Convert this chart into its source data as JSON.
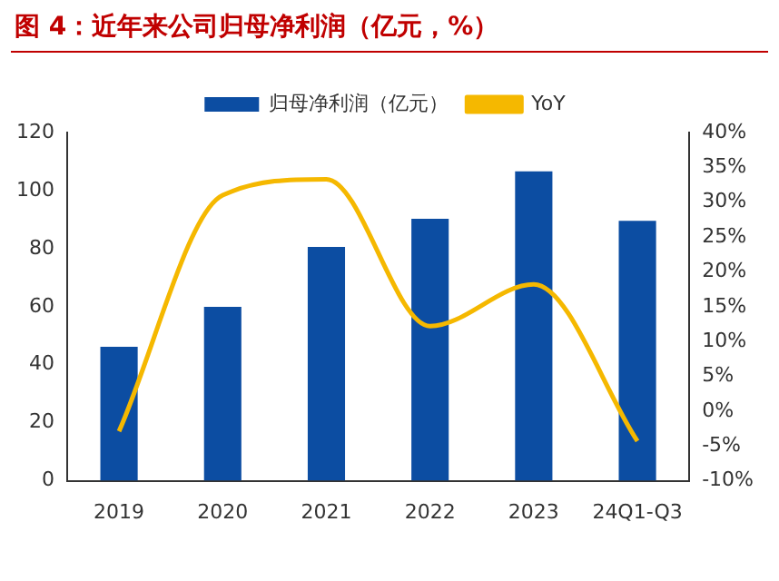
{
  "chart_data": {
    "type": "bar",
    "title": "图 4：近年来公司归母净利润（亿元，%）",
    "categories": [
      "2019",
      "2020",
      "2021",
      "2022",
      "2023",
      "24Q1-Q3"
    ],
    "series": [
      {
        "name": "归母净利润（亿元）",
        "color": "#0c4da2",
        "values": [
          46.2,
          59.9,
          80.6,
          90.3,
          106.6,
          89.6
        ]
      },
      {
        "name": "YoY",
        "type": "line",
        "axis": "y2",
        "color": "#f5b800",
        "values": [
          -2.9,
          31,
          33.3,
          12.2,
          18.2,
          -4.3
        ]
      }
    ],
    "ylim": [
      0,
      120
    ],
    "yticks": [
      0,
      20,
      40,
      60,
      80,
      100,
      120
    ],
    "y2lim": [
      -10,
      40
    ],
    "y2ticks": [
      {
        "value": -10,
        "label": "-10%"
      },
      {
        "value": -5,
        "label": "-5%"
      },
      {
        "value": 0,
        "label": "0%"
      },
      {
        "value": 5,
        "label": "5%"
      },
      {
        "value": 10,
        "label": "10%"
      },
      {
        "value": 15,
        "label": "15%"
      },
      {
        "value": 20,
        "label": "20%"
      },
      {
        "value": 25,
        "label": "25%"
      },
      {
        "value": 30,
        "label": "30%"
      },
      {
        "value": 35,
        "label": "35%"
      },
      {
        "value": 40,
        "label": "40%"
      }
    ],
    "grid": false,
    "legend": "top",
    "marker": "none"
  }
}
